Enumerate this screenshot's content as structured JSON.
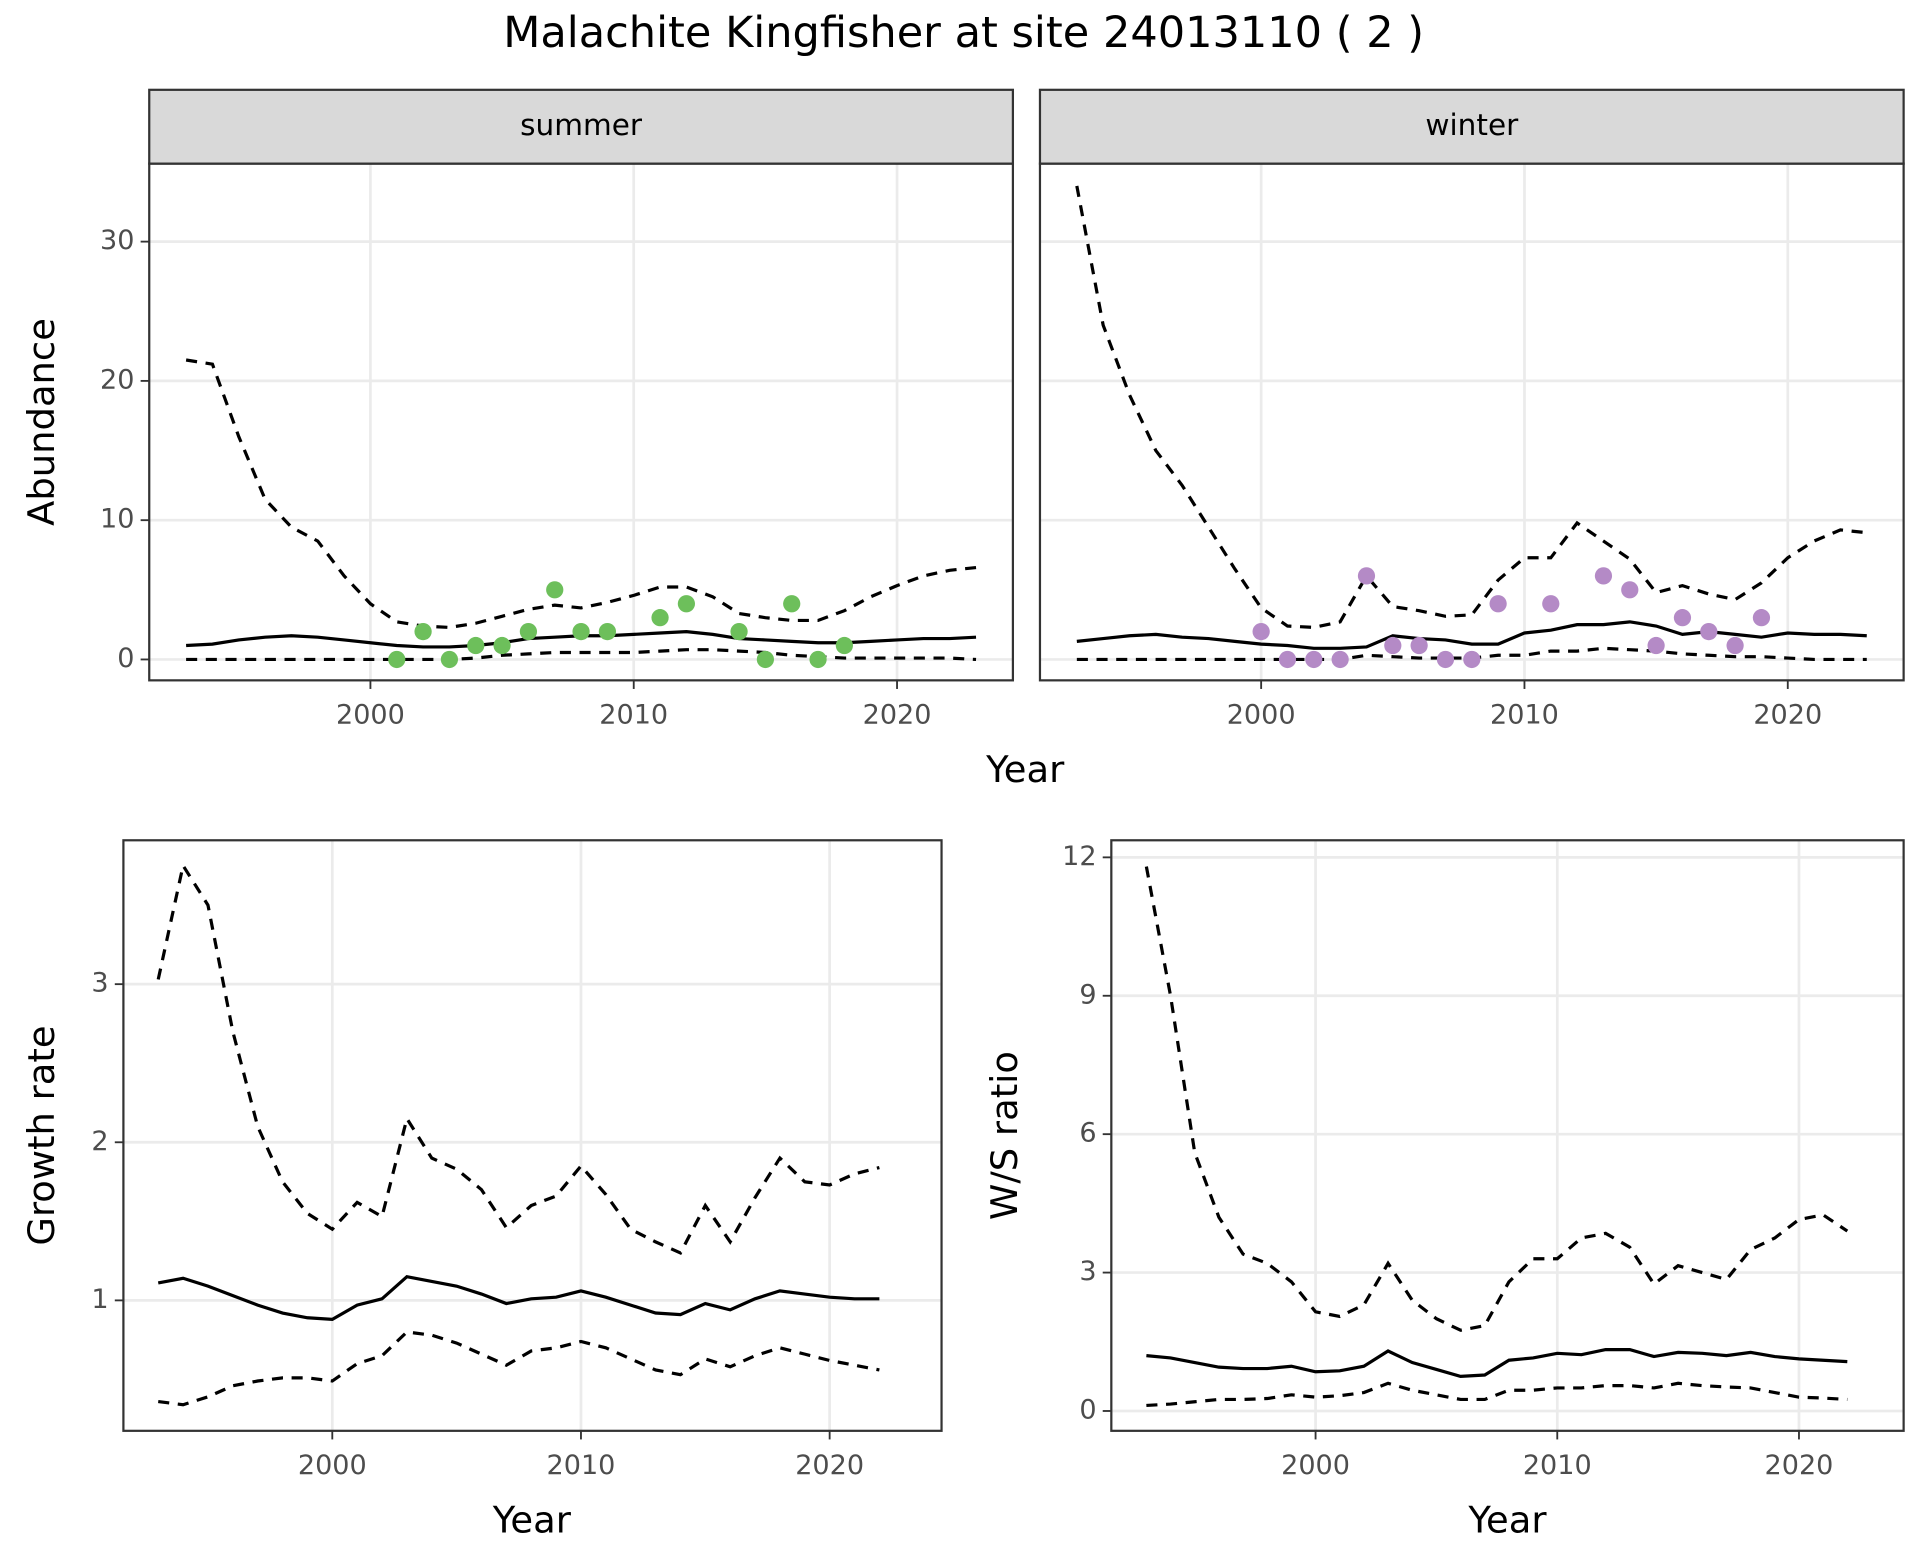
{
  "title": "Malachite Kingfisher at site 24013110 ( 2 )",
  "chart_data": [
    {
      "type": "line",
      "facet": "summer",
      "ylabel": "Abundance",
      "xlabel": "Year",
      "x": [
        1993,
        1994,
        1995,
        1996,
        1997,
        1998,
        1999,
        2000,
        2001,
        2002,
        2003,
        2004,
        2005,
        2006,
        2007,
        2008,
        2009,
        2010,
        2011,
        2012,
        2013,
        2014,
        2015,
        2016,
        2017,
        2018,
        2019,
        2020,
        2021,
        2022,
        2023
      ],
      "series": [
        {
          "color": "#000000",
          "dash": false,
          "values": [
            1,
            1.1,
            1.4,
            1.6,
            1.7,
            1.6,
            1.4,
            1.2,
            1.0,
            0.9,
            0.9,
            1.0,
            1.2,
            1.5,
            1.6,
            1.7,
            1.7,
            1.8,
            1.9,
            2.0,
            1.8,
            1.5,
            1.4,
            1.3,
            1.2,
            1.2,
            1.3,
            1.4,
            1.5,
            1.5,
            1.6
          ]
        },
        {
          "color": "#000000",
          "dash": true,
          "values": [
            21.5,
            21.2,
            16,
            11.5,
            9.5,
            8.5,
            6,
            4,
            2.7,
            2.4,
            2.3,
            2.6,
            3.1,
            3.6,
            3.9,
            3.7,
            4.1,
            4.6,
            5.2,
            5.2,
            4.5,
            3.3,
            3.0,
            2.8,
            2.8,
            3.5,
            4.5,
            5.3,
            6.0,
            6.4,
            6.6
          ]
        },
        {
          "color": "#000000",
          "dash": true,
          "values": [
            0,
            0,
            0,
            0,
            0,
            0,
            0,
            0,
            0,
            0,
            0,
            0.1,
            0.3,
            0.4,
            0.5,
            0.5,
            0.5,
            0.5,
            0.6,
            0.7,
            0.7,
            0.6,
            0.5,
            0.3,
            0.2,
            0.1,
            0.1,
            0.1,
            0.1,
            0.1,
            0
          ]
        }
      ],
      "points": {
        "color": "#6dbf5b",
        "x": [
          2001,
          2002,
          2003,
          2004,
          2005,
          2006,
          2007,
          2008,
          2009,
          2011,
          2012,
          2014,
          2015,
          2016,
          2017,
          2018
        ],
        "values": [
          0,
          2,
          0,
          1,
          1,
          2,
          5,
          2,
          2,
          3,
          4,
          2,
          0,
          4,
          0,
          1
        ]
      },
      "xlim": [
        1991.6,
        2024.4
      ],
      "ylim": [
        -1.5,
        35.6
      ],
      "xticks": [
        2000,
        2010,
        2020
      ],
      "yticks": [
        0,
        10,
        20,
        30
      ],
      "grid": true
    },
    {
      "type": "line",
      "facet": "winter",
      "x": [
        1993,
        1994,
        1995,
        1996,
        1997,
        1998,
        1999,
        2000,
        2001,
        2002,
        2003,
        2004,
        2005,
        2006,
        2007,
        2008,
        2009,
        2010,
        2011,
        2012,
        2013,
        2014,
        2015,
        2016,
        2017,
        2018,
        2019,
        2020,
        2021,
        2022,
        2023
      ],
      "series": [
        {
          "color": "#000000",
          "dash": false,
          "values": [
            1.3,
            1.5,
            1.7,
            1.8,
            1.6,
            1.5,
            1.3,
            1.1,
            1.0,
            0.8,
            0.8,
            0.9,
            1.7,
            1.5,
            1.4,
            1.1,
            1.1,
            1.9,
            2.1,
            2.5,
            2.5,
            2.7,
            2.4,
            1.8,
            2.0,
            1.8,
            1.6,
            1.9,
            1.8,
            1.8,
            1.7
          ]
        },
        {
          "color": "#000000",
          "dash": true,
          "values": [
            34,
            24,
            19,
            15,
            12.5,
            9.5,
            6.5,
            3.7,
            2.4,
            2.3,
            2.7,
            6,
            3.8,
            3.5,
            3.1,
            3.2,
            5.7,
            7.3,
            7.3,
            9.8,
            8.5,
            7.2,
            4.8,
            5.3,
            4.7,
            4.3,
            5.5,
            7.3,
            8.5,
            9.3,
            9.1
          ]
        },
        {
          "color": "#000000",
          "dash": true,
          "values": [
            0,
            0,
            0,
            0,
            0,
            0,
            0,
            0,
            0,
            0,
            0,
            0.3,
            0.2,
            0.1,
            0.1,
            0.1,
            0.3,
            0.3,
            0.6,
            0.6,
            0.8,
            0.7,
            0.6,
            0.4,
            0.3,
            0.2,
            0.2,
            0.1,
            0,
            0,
            0
          ]
        }
      ],
      "points": {
        "color": "#b48ac6",
        "x": [
          2000,
          2001,
          2002,
          2003,
          2004,
          2005,
          2006,
          2007,
          2008,
          2009,
          2011,
          2013,
          2014,
          2015,
          2016,
          2017,
          2018,
          2019
        ],
        "values": [
          2,
          0,
          0,
          0,
          6,
          1,
          1,
          0,
          0,
          4,
          4,
          6,
          5,
          1,
          3,
          2,
          1,
          3
        ]
      },
      "xlim": [
        1991.6,
        2024.4
      ],
      "xticks": [
        2000,
        2010,
        2020
      ],
      "grid": true
    },
    {
      "type": "line",
      "ylabel": "Growth rate",
      "xlabel": "Year",
      "x": [
        1993,
        1994,
        1995,
        1996,
        1997,
        1998,
        1999,
        2000,
        2001,
        2002,
        2003,
        2004,
        2005,
        2006,
        2007,
        2008,
        2009,
        2010,
        2011,
        2012,
        2013,
        2014,
        2015,
        2016,
        2017,
        2018,
        2019,
        2020,
        2021,
        2022
      ],
      "series": [
        {
          "color": "#000000",
          "dash": false,
          "values": [
            1.11,
            1.14,
            1.09,
            1.03,
            0.97,
            0.92,
            0.89,
            0.88,
            0.97,
            1.01,
            1.15,
            1.12,
            1.09,
            1.04,
            0.98,
            1.01,
            1.02,
            1.06,
            1.02,
            0.97,
            0.92,
            0.91,
            0.98,
            0.94,
            1.01,
            1.06,
            1.04,
            1.02,
            1.01,
            1.01
          ]
        },
        {
          "color": "#000000",
          "dash": true,
          "values": [
            3.03,
            3.75,
            3.5,
            2.7,
            2.1,
            1.75,
            1.55,
            1.45,
            1.62,
            1.53,
            2.15,
            1.9,
            1.83,
            1.7,
            1.46,
            1.6,
            1.66,
            1.85,
            1.67,
            1.45,
            1.37,
            1.3,
            1.6,
            1.37,
            1.65,
            1.9,
            1.75,
            1.73,
            1.8,
            1.84
          ]
        },
        {
          "color": "#000000",
          "dash": true,
          "values": [
            0.36,
            0.34,
            0.39,
            0.46,
            0.49,
            0.51,
            0.51,
            0.49,
            0.6,
            0.65,
            0.8,
            0.78,
            0.73,
            0.66,
            0.59,
            0.68,
            0.7,
            0.74,
            0.7,
            0.63,
            0.56,
            0.53,
            0.63,
            0.58,
            0.65,
            0.7,
            0.66,
            0.62,
            0.59,
            0.56
          ]
        }
      ],
      "xlim": [
        1991.6,
        2024.5
      ],
      "ylim": [
        0.175,
        3.91
      ],
      "xticks": [
        2000,
        2010,
        2020
      ],
      "yticks": [
        1,
        2,
        3
      ],
      "grid": true
    },
    {
      "type": "line",
      "ylabel": "W/S ratio",
      "xlabel": "Year",
      "x": [
        1993,
        1994,
        1995,
        1996,
        1997,
        1998,
        1999,
        2000,
        2001,
        2002,
        2003,
        2004,
        2005,
        2006,
        2007,
        2008,
        2009,
        2010,
        2011,
        2012,
        2013,
        2014,
        2015,
        2016,
        2017,
        2018,
        2019,
        2020,
        2021,
        2022
      ],
      "series": [
        {
          "color": "#000000",
          "dash": false,
          "values": [
            1.2,
            1.15,
            1.05,
            0.95,
            0.92,
            0.92,
            0.97,
            0.85,
            0.87,
            0.97,
            1.3,
            1.05,
            0.9,
            0.75,
            0.78,
            1.1,
            1.15,
            1.25,
            1.22,
            1.33,
            1.33,
            1.18,
            1.27,
            1.25,
            1.2,
            1.27,
            1.18,
            1.13,
            1.1,
            1.07
          ]
        },
        {
          "color": "#000000",
          "dash": true,
          "values": [
            11.8,
            9,
            5.6,
            4.2,
            3.4,
            3.2,
            2.8,
            2.15,
            2.05,
            2.3,
            3.2,
            2.4,
            2,
            1.75,
            1.85,
            2.8,
            3.3,
            3.3,
            3.75,
            3.85,
            3.55,
            2.75,
            3.15,
            3.0,
            2.85,
            3.5,
            3.75,
            4.15,
            4.25,
            3.9
          ]
        },
        {
          "color": "#000000",
          "dash": true,
          "values": [
            0.12,
            0.15,
            0.2,
            0.25,
            0.25,
            0.27,
            0.35,
            0.3,
            0.33,
            0.4,
            0.6,
            0.45,
            0.35,
            0.25,
            0.25,
            0.45,
            0.45,
            0.5,
            0.5,
            0.55,
            0.55,
            0.5,
            0.6,
            0.55,
            0.52,
            0.5,
            0.4,
            0.3,
            0.28,
            0.25
          ]
        }
      ],
      "xlim": [
        1991.55,
        2024.33
      ],
      "ylim": [
        -0.43,
        12.37
      ],
      "xticks": [
        2000,
        2010,
        2020
      ],
      "yticks": [
        0,
        3,
        6,
        9,
        12
      ],
      "grid": true
    }
  ]
}
